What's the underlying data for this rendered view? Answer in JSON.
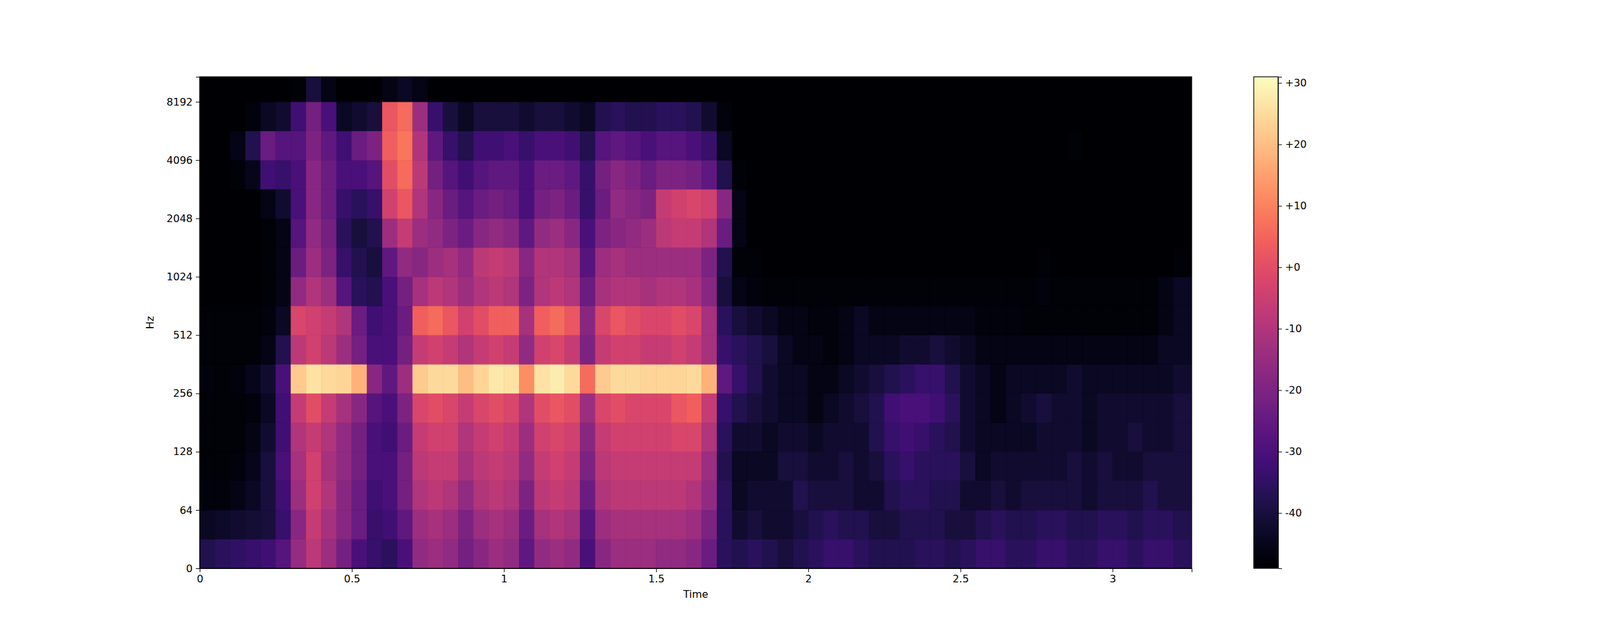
{
  "chart_data": {
    "type": "heatmap",
    "x_label": "Time",
    "y_label": "Hz",
    "xlim": [
      0,
      3.26
    ],
    "ylim": [
      0,
      11025
    ],
    "xticks": [
      0,
      0.5,
      1,
      1.5,
      2,
      2.5,
      3
    ],
    "yticks": [
      0,
      64,
      128,
      256,
      512,
      1024,
      2048,
      4096,
      8192
    ],
    "log": "y",
    "color": "magma",
    "colorbar": {
      "range": [
        -49,
        31
      ],
      "ticks": [
        {
          "value": 30,
          "label": "+30"
        },
        {
          "value": 20,
          "label": "+20"
        },
        {
          "value": 10,
          "label": "+10"
        },
        {
          "value": 0,
          "label": "+0"
        },
        -10,
        -20,
        -30,
        -40
      ]
    },
    "x_bins": [
      0,
      0.05,
      0.1,
      0.15,
      0.2,
      0.25,
      0.3,
      0.35,
      0.4,
      0.45,
      0.5,
      0.55,
      0.6,
      0.65,
      0.7,
      0.75,
      0.8,
      0.85,
      0.9,
      0.95,
      1,
      1.05,
      1.1,
      1.15,
      1.2,
      1.25,
      1.3,
      1.35,
      1.4,
      1.45,
      1.5,
      1.55,
      1.6,
      1.65,
      1.7,
      1.75,
      1.8,
      1.85,
      1.9,
      1.95,
      2,
      2.05,
      2.1,
      2.15,
      2.2,
      2.25,
      2.3,
      2.35,
      2.4,
      2.45,
      2.5,
      2.55,
      2.6,
      2.65,
      2.7,
      2.75,
      2.8,
      2.85,
      2.9,
      2.95,
      3,
      3.05,
      3.1,
      3.15,
      3.2,
      3.25,
      3.3
    ],
    "y_bins": [
      0,
      32,
      64,
      91,
      128,
      181,
      256,
      362,
      512,
      724,
      1024,
      1448,
      2048,
      2896,
      4096,
      5793,
      8192,
      11025
    ],
    "values": [
      [
        -38,
        -44,
        -47,
        -48,
        -48,
        -48,
        -47,
        -48,
        -48,
        -49,
        -49,
        -49,
        -49,
        -49,
        -49,
        -49,
        -49
      ],
      [
        -36,
        -43,
        -47,
        -48,
        -48,
        -48,
        -48,
        -48,
        -48,
        -49,
        -49,
        -49,
        -49,
        -49,
        -49,
        -49,
        -49
      ],
      [
        -35,
        -42,
        -46,
        -47,
        -48,
        -48,
        -47,
        -48,
        -48,
        -49,
        -49,
        -49,
        -49,
        -48,
        -46,
        -49,
        -49
      ],
      [
        -34,
        -41,
        -44,
        -45,
        -46,
        -47,
        -45,
        -48,
        -48,
        -49,
        -49,
        -49,
        -49,
        -45,
        -38,
        -47,
        -49
      ],
      [
        -32,
        -40,
        -40,
        -40,
        -42,
        -44,
        -42,
        -46,
        -47,
        -48,
        -48,
        -48,
        -46,
        -32,
        -24,
        -44,
        -49
      ],
      [
        -28,
        -34,
        -32,
        -30,
        -32,
        -32,
        -30,
        -38,
        -44,
        -46,
        -46,
        -46,
        -42,
        -34,
        -28,
        -42,
        -49
      ],
      [
        -15,
        -18,
        -14,
        -12,
        -10,
        -6,
        22,
        -8,
        -2,
        -16,
        -24,
        -28,
        -30,
        -30,
        -28,
        -32,
        -48
      ],
      [
        -8,
        -6,
        -4,
        -4,
        -6,
        0,
        26,
        -4,
        -4,
        -10,
        -14,
        -16,
        -18,
        -18,
        -20,
        -22,
        -40
      ],
      [
        -14,
        -12,
        -10,
        -12,
        -10,
        -6,
        25,
        -8,
        -6,
        -14,
        -20,
        -22,
        -24,
        -24,
        -26,
        -30,
        -46
      ],
      [
        -22,
        -18,
        -18,
        -16,
        -16,
        -12,
        24,
        -14,
        -10,
        -28,
        -34,
        -36,
        -34,
        -30,
        -32,
        -44,
        -49
      ],
      [
        -30,
        -24,
        -24,
        -22,
        -22,
        -18,
        18,
        -22,
        -24,
        -36,
        -38,
        -40,
        -36,
        -30,
        -24,
        -42,
        -49
      ],
      [
        -34,
        -34,
        -32,
        -30,
        -30,
        -28,
        -18,
        -30,
        -32,
        -38,
        -40,
        -38,
        -34,
        -28,
        -20,
        -40,
        -49
      ],
      [
        -36,
        -32,
        -30,
        -30,
        -32,
        -30,
        -26,
        -30,
        -30,
        -30,
        -26,
        -14,
        -4,
        0,
        4,
        2,
        -46
      ],
      [
        -30,
        -26,
        -22,
        -22,
        -24,
        -20,
        -14,
        -22,
        -24,
        -22,
        -16,
        -6,
        2,
        6,
        8,
        6,
        -44
      ],
      [
        -16,
        -14,
        -10,
        -8,
        -6,
        -2,
        22,
        -6,
        4,
        -12,
        -18,
        -14,
        -10,
        -8,
        -10,
        -14,
        -46
      ],
      [
        -14,
        -12,
        -8,
        -6,
        -4,
        0,
        25,
        -4,
        6,
        -8,
        -14,
        -16,
        -18,
        -22,
        -26,
        -34,
        -49
      ],
      [
        -16,
        -14,
        -10,
        -6,
        -4,
        -2,
        25,
        -6,
        2,
        -10,
        -12,
        -20,
        -24,
        -28,
        -34,
        -40,
        -49
      ],
      [
        -22,
        -20,
        -16,
        -12,
        -10,
        -6,
        20,
        -10,
        -4,
        -14,
        -16,
        -24,
        -28,
        -32,
        -38,
        -44,
        -49
      ],
      [
        -18,
        -14,
        -10,
        -8,
        -6,
        -2,
        24,
        -6,
        0,
        -10,
        -8,
        -18,
        -24,
        -28,
        -32,
        -40,
        -49
      ],
      [
        -14,
        -12,
        -8,
        -6,
        -4,
        0,
        27,
        -4,
        4,
        -8,
        -6,
        -16,
        -22,
        -26,
        -32,
        -40,
        -49
      ],
      [
        -16,
        -14,
        -10,
        -8,
        -6,
        -2,
        26,
        -6,
        4,
        -10,
        -8,
        -18,
        -24,
        -26,
        -30,
        -40,
        -49
      ],
      [
        -26,
        -24,
        -20,
        -16,
        -14,
        -10,
        12,
        -16,
        -12,
        -20,
        -18,
        -26,
        -30,
        -30,
        -34,
        -42,
        -49
      ],
      [
        -16,
        -12,
        -8,
        -6,
        -4,
        0,
        26,
        -4,
        4,
        -10,
        -10,
        -16,
        -22,
        -24,
        -30,
        -40,
        -49
      ],
      [
        -14,
        -10,
        -6,
        -4,
        -2,
        2,
        28,
        -2,
        6,
        -8,
        -10,
        -14,
        -20,
        -24,
        -30,
        -40,
        -49
      ],
      [
        -16,
        -12,
        -8,
        -6,
        -4,
        0,
        25,
        -6,
        2,
        -10,
        -12,
        -18,
        -24,
        -26,
        -32,
        -42,
        -49
      ],
      [
        -30,
        -28,
        -24,
        -20,
        -18,
        -14,
        6,
        -20,
        -18,
        -24,
        -28,
        -30,
        -34,
        -34,
        -38,
        -44,
        -49
      ],
      [
        -18,
        -14,
        -10,
        -8,
        -6,
        -2,
        22,
        -6,
        -2,
        -12,
        -14,
        -20,
        -24,
        -22,
        -28,
        -38,
        -49
      ],
      [
        -14,
        -12,
        -8,
        -6,
        -4,
        0,
        25,
        -4,
        2,
        -10,
        -12,
        -18,
        -16,
        -18,
        -26,
        -36,
        -49
      ],
      [
        -14,
        -12,
        -8,
        -6,
        -4,
        -2,
        25,
        -4,
        0,
        -10,
        -14,
        -16,
        -18,
        -20,
        -28,
        -38,
        -49
      ],
      [
        -14,
        -12,
        -8,
        -6,
        -4,
        -2,
        24,
        -6,
        -2,
        -12,
        -14,
        -14,
        -20,
        -24,
        -30,
        -38,
        -49
      ],
      [
        -16,
        -12,
        -8,
        -6,
        -4,
        -2,
        24,
        -6,
        -2,
        -10,
        -14,
        -8,
        -6,
        -20,
        -28,
        -36,
        -49
      ],
      [
        -16,
        -12,
        -8,
        -6,
        -2,
        2,
        24,
        -4,
        0,
        -10,
        -14,
        -6,
        -4,
        -20,
        -28,
        -36,
        -49
      ],
      [
        -18,
        -14,
        -10,
        -6,
        -2,
        4,
        25,
        -6,
        -2,
        -12,
        -14,
        -6,
        -2,
        -22,
        -30,
        -38,
        -49
      ],
      [
        -24,
        -20,
        -16,
        -14,
        -10,
        -6,
        18,
        -12,
        -12,
        -18,
        -20,
        -10,
        -4,
        -26,
        -34,
        -42,
        -49
      ],
      [
        -36,
        -36,
        -36,
        -38,
        -36,
        -34,
        -26,
        -34,
        -36,
        -40,
        -38,
        -24,
        -18,
        -38,
        -44,
        -47,
        -49
      ],
      [
        -38,
        -42,
        -44,
        -44,
        -42,
        -38,
        -34,
        -36,
        -40,
        -46,
        -48,
        -46,
        -46,
        -48,
        -49,
        -49,
        -49
      ],
      [
        -36,
        -40,
        -42,
        -44,
        -42,
        -40,
        -38,
        -38,
        -42,
        -47,
        -48,
        -49,
        -49,
        -49,
        -49,
        -49,
        -49
      ],
      [
        -38,
        -42,
        -42,
        -44,
        -44,
        -42,
        -42,
        -40,
        -44,
        -48,
        -49,
        -49,
        -49,
        -49,
        -49,
        -49,
        -49
      ],
      [
        -40,
        -42,
        -42,
        -40,
        -42,
        -44,
        -44,
        -44,
        -46,
        -48,
        -49,
        -49,
        -49,
        -49,
        -49,
        -49,
        -49
      ],
      [
        -38,
        -40,
        -38,
        -40,
        -42,
        -44,
        -44,
        -46,
        -46,
        -48,
        -49,
        -49,
        -49,
        -49,
        -49,
        -49,
        -49
      ],
      [
        -36,
        -38,
        -40,
        -42,
        -44,
        -46,
        -46,
        -46,
        -47,
        -48,
        -49,
        -49,
        -49,
        -49,
        -49,
        -49,
        -49
      ],
      [
        -34,
        -36,
        -40,
        -42,
        -42,
        -44,
        -46,
        -47,
        -47,
        -48,
        -49,
        -49,
        -49,
        -49,
        -49,
        -49,
        -49
      ],
      [
        -34,
        -38,
        -40,
        -40,
        -42,
        -42,
        -44,
        -46,
        -46,
        -48,
        -49,
        -49,
        -49,
        -49,
        -49,
        -49,
        -49
      ],
      [
        -36,
        -38,
        -42,
        -42,
        -42,
        -40,
        -42,
        -44,
        -44,
        -48,
        -49,
        -49,
        -49,
        -49,
        -49,
        -49,
        -49
      ],
      [
        -38,
        -40,
        -42,
        -40,
        -38,
        -38,
        -40,
        -44,
        -46,
        -48,
        -49,
        -49,
        -49,
        -49,
        -49,
        -49,
        -49
      ],
      [
        -38,
        -40,
        -38,
        -36,
        -34,
        -32,
        -38,
        -44,
        -46,
        -48,
        -49,
        -49,
        -49,
        -49,
        -49,
        -49,
        -49
      ],
      [
        -38,
        -38,
        -36,
        -34,
        -32,
        -30,
        -36,
        -42,
        -46,
        -48,
        -49,
        -49,
        -49,
        -49,
        -49,
        -49,
        -49
      ],
      [
        -36,
        -38,
        -36,
        -36,
        -34,
        -30,
        -34,
        -42,
        -46,
        -48,
        -49,
        -49,
        -49,
        -49,
        -49,
        -49,
        -49
      ],
      [
        -36,
        -38,
        -38,
        -36,
        -36,
        -32,
        -34,
        -40,
        -46,
        -48,
        -49,
        -49,
        -49,
        -49,
        -49,
        -49,
        -49
      ],
      [
        -38,
        -40,
        -38,
        -36,
        -38,
        -36,
        -38,
        -42,
        -46,
        -48,
        -49,
        -49,
        -49,
        -49,
        -49,
        -49,
        -49
      ],
      [
        -36,
        -40,
        -42,
        -40,
        -42,
        -42,
        -42,
        -44,
        -46,
        -48,
        -49,
        -49,
        -49,
        -49,
        -49,
        -49,
        -49
      ],
      [
        -34,
        -38,
        -42,
        -44,
        -44,
        -44,
        -44,
        -46,
        -47,
        -48,
        -49,
        -49,
        -49,
        -49,
        -49,
        -49,
        -49
      ],
      [
        -34,
        -36,
        -40,
        -42,
        -44,
        -46,
        -46,
        -46,
        -47,
        -48,
        -49,
        -49,
        -49,
        -49,
        -49,
        -49,
        -49
      ],
      [
        -36,
        -38,
        -42,
        -42,
        -44,
        -44,
        -44,
        -46,
        -47,
        -48,
        -49,
        -49,
        -49,
        -49,
        -49,
        -49,
        -49
      ],
      [
        -36,
        -38,
        -40,
        -42,
        -44,
        -42,
        -44,
        -46,
        -48,
        -48,
        -49,
        -49,
        -49,
        -49,
        -49,
        -49,
        -49
      ],
      [
        -34,
        -36,
        -40,
        -42,
        -42,
        -40,
        -44,
        -46,
        -48,
        -47,
        -48,
        -49,
        -49,
        -49,
        -49,
        -49,
        -49
      ],
      [
        -34,
        -36,
        -40,
        -42,
        -42,
        -42,
        -44,
        -46,
        -48,
        -48,
        -49,
        -49,
        -49,
        -49,
        -49,
        -49,
        -49
      ],
      [
        -36,
        -38,
        -40,
        -40,
        -42,
        -42,
        -42,
        -46,
        -48,
        -48,
        -49,
        -49,
        -49,
        -49,
        -48,
        -49,
        -49
      ],
      [
        -36,
        -38,
        -42,
        -42,
        -44,
        -44,
        -44,
        -46,
        -48,
        -48,
        -49,
        -49,
        -49,
        -49,
        -49,
        -49,
        -49
      ],
      [
        -34,
        -36,
        -40,
        -40,
        -42,
        -42,
        -44,
        -46,
        -48,
        -48,
        -49,
        -49,
        -49,
        -49,
        -49,
        -49,
        -49
      ],
      [
        -34,
        -36,
        -40,
        -42,
        -42,
        -42,
        -44,
        -46,
        -48,
        -48,
        -49,
        -49,
        -49,
        -49,
        -49,
        -49,
        -49
      ],
      [
        -36,
        -38,
        -40,
        -42,
        -40,
        -42,
        -44,
        -46,
        -48,
        -48,
        -49,
        -49,
        -49,
        -49,
        -49,
        -49,
        -49
      ],
      [
        -34,
        -36,
        -38,
        -40,
        -42,
        -42,
        -44,
        -46,
        -48,
        -48,
        -49,
        -49,
        -49,
        -49,
        -49,
        -49,
        -49
      ],
      [
        -34,
        -36,
        -40,
        -40,
        -42,
        -42,
        -44,
        -44,
        -46,
        -46,
        -49,
        -49,
        -49,
        -49,
        -49,
        -49,
        -49
      ],
      [
        -36,
        -38,
        -40,
        -40,
        -40,
        -40,
        -42,
        -44,
        -44,
        -44,
        -48,
        -49,
        -49,
        -49,
        -49,
        -49,
        -49
      ],
      [
        -36,
        -38,
        -40,
        -40,
        -40,
        -40,
        -42,
        -44,
        -44,
        -44,
        -48,
        -49,
        -49,
        -49,
        -49,
        -49,
        -49
      ]
    ]
  }
}
